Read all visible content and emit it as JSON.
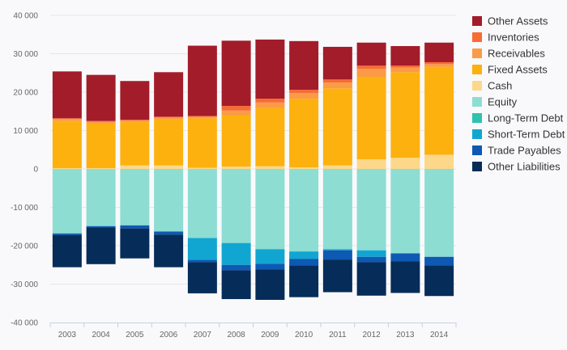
{
  "chart_data": {
    "type": "bar",
    "stacked": true,
    "title": "",
    "xlabel": "",
    "ylabel": "",
    "ylim": [
      -40000,
      40000
    ],
    "y_ticks": [
      40000,
      30000,
      20000,
      10000,
      0,
      -10000,
      -20000,
      -30000,
      -40000
    ],
    "y_tick_labels": [
      "40 000",
      "30 000",
      "20 000",
      "10 000",
      "0",
      "-10 000",
      "-20 000",
      "-30 000",
      "-40 000"
    ],
    "grid": true,
    "legend_position": "right",
    "categories": [
      "2003",
      "2004",
      "2005",
      "2006",
      "2007",
      "2008",
      "2009",
      "2010",
      "2011",
      "2012",
      "2013",
      "2014"
    ],
    "positive_series": [
      {
        "name": "Cash",
        "color": "#fdd88a",
        "values": [
          200,
          200,
          900,
          900,
          300,
          600,
          700,
          400,
          900,
          2500,
          2900,
          3700
        ]
      },
      {
        "name": "Fixed Assets",
        "color": "#fcb10f",
        "values": [
          12300,
          11600,
          11300,
          12000,
          12900,
          13400,
          15200,
          17900,
          20100,
          21500,
          22300,
          22900
        ]
      },
      {
        "name": "Receivables",
        "color": "#fb9b47",
        "values": [
          500,
          500,
          400,
          500,
          400,
          1200,
          1400,
          1500,
          1500,
          2100,
          1200,
          700
        ]
      },
      {
        "name": "Inventories",
        "color": "#f86c33",
        "values": [
          200,
          200,
          200,
          200,
          200,
          1200,
          1000,
          800,
          800,
          800,
          500,
          500
        ]
      },
      {
        "name": "Other Assets",
        "color": "#a31c2a",
        "values": [
          12200,
          12000,
          10100,
          11600,
          18300,
          17000,
          15400,
          12700,
          8500,
          6000,
          5100,
          5100
        ]
      }
    ],
    "negative_series": [
      {
        "name": "Equity",
        "color": "#8dddd3",
        "values": [
          -16800,
          -14900,
          -14700,
          -16300,
          -18000,
          -19300,
          -20900,
          -21500,
          -20900,
          -21200,
          -22000,
          -22900
        ]
      },
      {
        "name": "Long-Term Debt",
        "color": "#2ec2b0",
        "values": [
          0,
          0,
          0,
          0,
          0,
          0,
          0,
          0,
          0,
          0,
          0,
          0
        ]
      },
      {
        "name": "Short-Term Debt",
        "color": "#11a6d1",
        "values": [
          0,
          0,
          0,
          0,
          -5700,
          -5700,
          -3800,
          -1900,
          -300,
          -1700,
          0,
          0
        ]
      },
      {
        "name": "Trade Payables",
        "color": "#0d59b3",
        "values": [
          -400,
          -300,
          -800,
          -800,
          -600,
          -1400,
          -1500,
          -1700,
          -2400,
          -1400,
          -2100,
          -2200
        ]
      },
      {
        "name": "Other Liabilities",
        "color": "#062c59",
        "values": [
          -8400,
          -9600,
          -7800,
          -8500,
          -8100,
          -7500,
          -7900,
          -8300,
          -8500,
          -8700,
          -8200,
          -8000
        ]
      }
    ],
    "legend": [
      {
        "name": "Other Assets",
        "color": "#a31c2a"
      },
      {
        "name": "Inventories",
        "color": "#f86c33"
      },
      {
        "name": "Receivables",
        "color": "#fb9b47"
      },
      {
        "name": "Fixed Assets",
        "color": "#fcb10f"
      },
      {
        "name": "Cash",
        "color": "#fdd88a"
      },
      {
        "name": "Equity",
        "color": "#8dddd3"
      },
      {
        "name": "Long-Term Debt",
        "color": "#2ec2b0"
      },
      {
        "name": "Short-Term Debt",
        "color": "#11a6d1"
      },
      {
        "name": "Trade Payables",
        "color": "#0d59b3"
      },
      {
        "name": "Other Liabilities",
        "color": "#062c59"
      }
    ]
  }
}
